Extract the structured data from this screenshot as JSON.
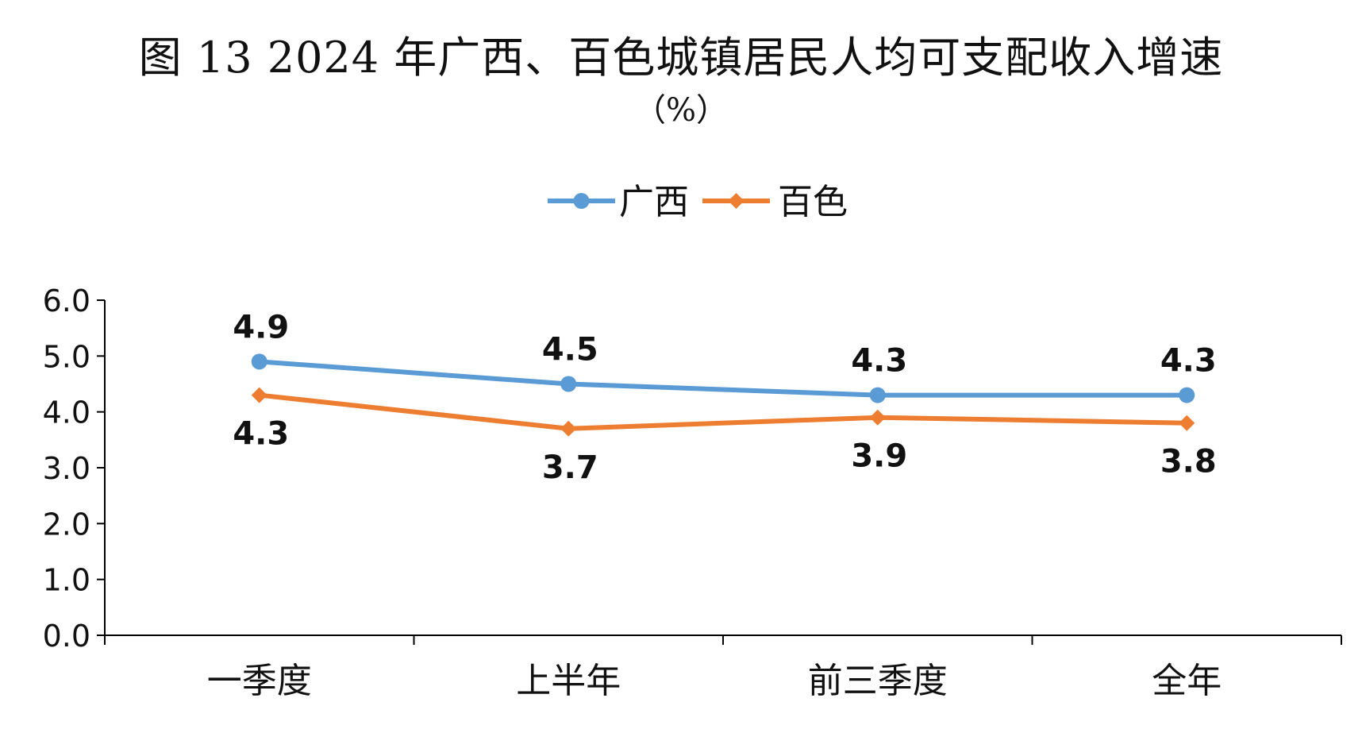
{
  "chart_data": {
    "type": "line",
    "title": "图 13  2024 年广西、百色城镇居民人均可支配收入增速",
    "subtitle": "（%）",
    "categories": [
      "一季度",
      "上半年",
      "前三季度",
      "全年"
    ],
    "series": [
      {
        "name": "广西",
        "values": [
          4.9,
          4.5,
          4.3,
          4.3
        ],
        "color": "#5B9BD5",
        "marker": "circle",
        "label_position": "above"
      },
      {
        "name": "百色",
        "values": [
          4.3,
          3.7,
          3.9,
          3.8
        ],
        "color": "#ED7D31",
        "marker": "diamond",
        "label_position": "below"
      }
    ],
    "ylim": [
      0,
      6
    ],
    "yticks": [
      "0.0",
      "1.0",
      "2.0",
      "3.0",
      "4.0",
      "5.0",
      "6.0"
    ],
    "legend_position": "top-center",
    "grid": false
  }
}
